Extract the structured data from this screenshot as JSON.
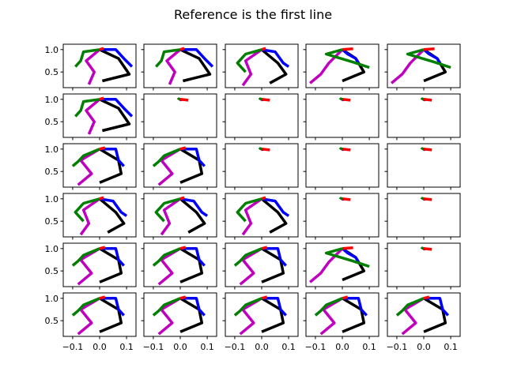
{
  "chart_data": {
    "type": "line",
    "title": "Reference is the first line",
    "rows": 6,
    "cols": 5,
    "xlim": [
      -0.135,
      0.135
    ],
    "ylim": [
      0.15,
      1.12
    ],
    "xticks": [
      -0.1,
      0.0,
      0.1
    ],
    "xtick_labels": [
      "−0.1",
      "0.0",
      "0.1"
    ],
    "yticks": [
      0.5,
      1.0
    ],
    "ytick_labels": [
      "0.5",
      "1.0"
    ],
    "colors": {
      "black": "#000000",
      "blue": "#0000ff",
      "magenta": "#bf00bf",
      "green": "#008000",
      "red": "#ff0000"
    },
    "poses": {
      "full_a": {
        "black": [
          [
            0.0,
            1.0
          ],
          [
            0.07,
            0.8
          ],
          [
            0.11,
            0.45
          ],
          [
            0.01,
            0.3
          ]
        ],
        "blue": [
          [
            0.0,
            1.0
          ],
          [
            0.06,
            1.0
          ],
          [
            0.09,
            0.8
          ],
          [
            0.12,
            0.62
          ]
        ],
        "magenta": [
          [
            0.0,
            1.0
          ],
          [
            -0.05,
            0.75
          ],
          [
            -0.02,
            0.5
          ],
          [
            -0.04,
            0.22
          ]
        ],
        "green": [
          [
            0.0,
            1.0
          ],
          [
            -0.06,
            0.95
          ],
          [
            -0.07,
            0.75
          ],
          [
            -0.09,
            0.62
          ]
        ],
        "red": [
          [
            0.0,
            1.0
          ],
          [
            0.015,
            1.03
          ]
        ]
      },
      "full_b": {
        "black": [
          [
            0.0,
            1.0
          ],
          [
            0.06,
            0.7
          ],
          [
            0.09,
            0.45
          ],
          [
            0.03,
            0.25
          ]
        ],
        "blue": [
          [
            0.0,
            1.0
          ],
          [
            0.05,
            0.95
          ],
          [
            0.08,
            0.7
          ],
          [
            0.1,
            0.62
          ]
        ],
        "magenta": [
          [
            0.0,
            1.0
          ],
          [
            -0.06,
            0.75
          ],
          [
            -0.04,
            0.45
          ],
          [
            -0.07,
            0.2
          ]
        ],
        "green": [
          [
            0.0,
            1.0
          ],
          [
            -0.06,
            0.9
          ],
          [
            -0.09,
            0.7
          ],
          [
            -0.06,
            0.5
          ]
        ],
        "red": [
          [
            0.0,
            1.0
          ],
          [
            0.015,
            1.03
          ]
        ]
      },
      "full_c": {
        "black": [
          [
            0.0,
            1.0
          ],
          [
            0.07,
            0.75
          ],
          [
            0.08,
            0.45
          ],
          [
            0.0,
            0.25
          ]
        ],
        "blue": [
          [
            0.0,
            1.0
          ],
          [
            0.06,
            1.0
          ],
          [
            0.07,
            0.75
          ],
          [
            0.09,
            0.62
          ]
        ],
        "magenta": [
          [
            0.0,
            1.0
          ],
          [
            -0.07,
            0.75
          ],
          [
            -0.03,
            0.45
          ],
          [
            -0.08,
            0.2
          ]
        ],
        "green": [
          [
            0.0,
            1.0
          ],
          [
            -0.06,
            0.85
          ],
          [
            -0.08,
            0.72
          ],
          [
            -0.1,
            0.62
          ]
        ],
        "red": [
          [
            0.0,
            1.0
          ],
          [
            0.02,
            1.03
          ]
        ]
      },
      "reach": {
        "black": [
          [
            0.0,
            1.0
          ],
          [
            0.05,
            0.8
          ],
          [
            0.08,
            0.5
          ],
          [
            0.0,
            0.3
          ]
        ],
        "blue": [
          [
            0.0,
            1.0
          ],
          [
            0.02,
            0.9
          ],
          [
            0.05,
            0.8
          ],
          [
            0.06,
            0.7
          ]
        ],
        "magenta": [
          [
            0.0,
            1.0
          ],
          [
            -0.05,
            0.7
          ],
          [
            -0.08,
            0.45
          ],
          [
            -0.12,
            0.25
          ]
        ],
        "green": [
          [
            0.0,
            1.0
          ],
          [
            -0.06,
            0.9
          ],
          [
            0.04,
            0.72
          ],
          [
            0.1,
            0.6
          ]
        ],
        "red": [
          [
            0.0,
            1.0
          ],
          [
            0.04,
            1.02
          ]
        ]
      },
      "tiny": {
        "black": [
          [
            0.0,
            1.0
          ],
          [
            0.005,
            0.98
          ]
        ],
        "blue": [
          [
            0.0,
            1.0
          ],
          [
            0.008,
            0.99
          ]
        ],
        "magenta": [
          [
            0.0,
            1.0
          ],
          [
            -0.004,
            0.98
          ]
        ],
        "green": [
          [
            0.0,
            1.0
          ],
          [
            -0.006,
            1.01
          ],
          [
            -0.008,
            0.99
          ]
        ],
        "red": [
          [
            0.0,
            1.0
          ],
          [
            0.03,
            0.98
          ]
        ]
      }
    },
    "grid": [
      [
        "full_a",
        "full_a",
        "full_b",
        "reach",
        "reach"
      ],
      [
        "full_a",
        "tiny",
        "tiny",
        "tiny",
        "tiny"
      ],
      [
        "full_c",
        "full_c",
        "tiny",
        "tiny",
        "tiny"
      ],
      [
        "full_b",
        "full_b",
        "full_b",
        "tiny",
        "tiny"
      ],
      [
        "full_c",
        "full_c",
        "full_c",
        "reach",
        "tiny"
      ],
      [
        "full_c",
        "full_c",
        "full_c",
        "full_c",
        "full_c"
      ]
    ]
  }
}
